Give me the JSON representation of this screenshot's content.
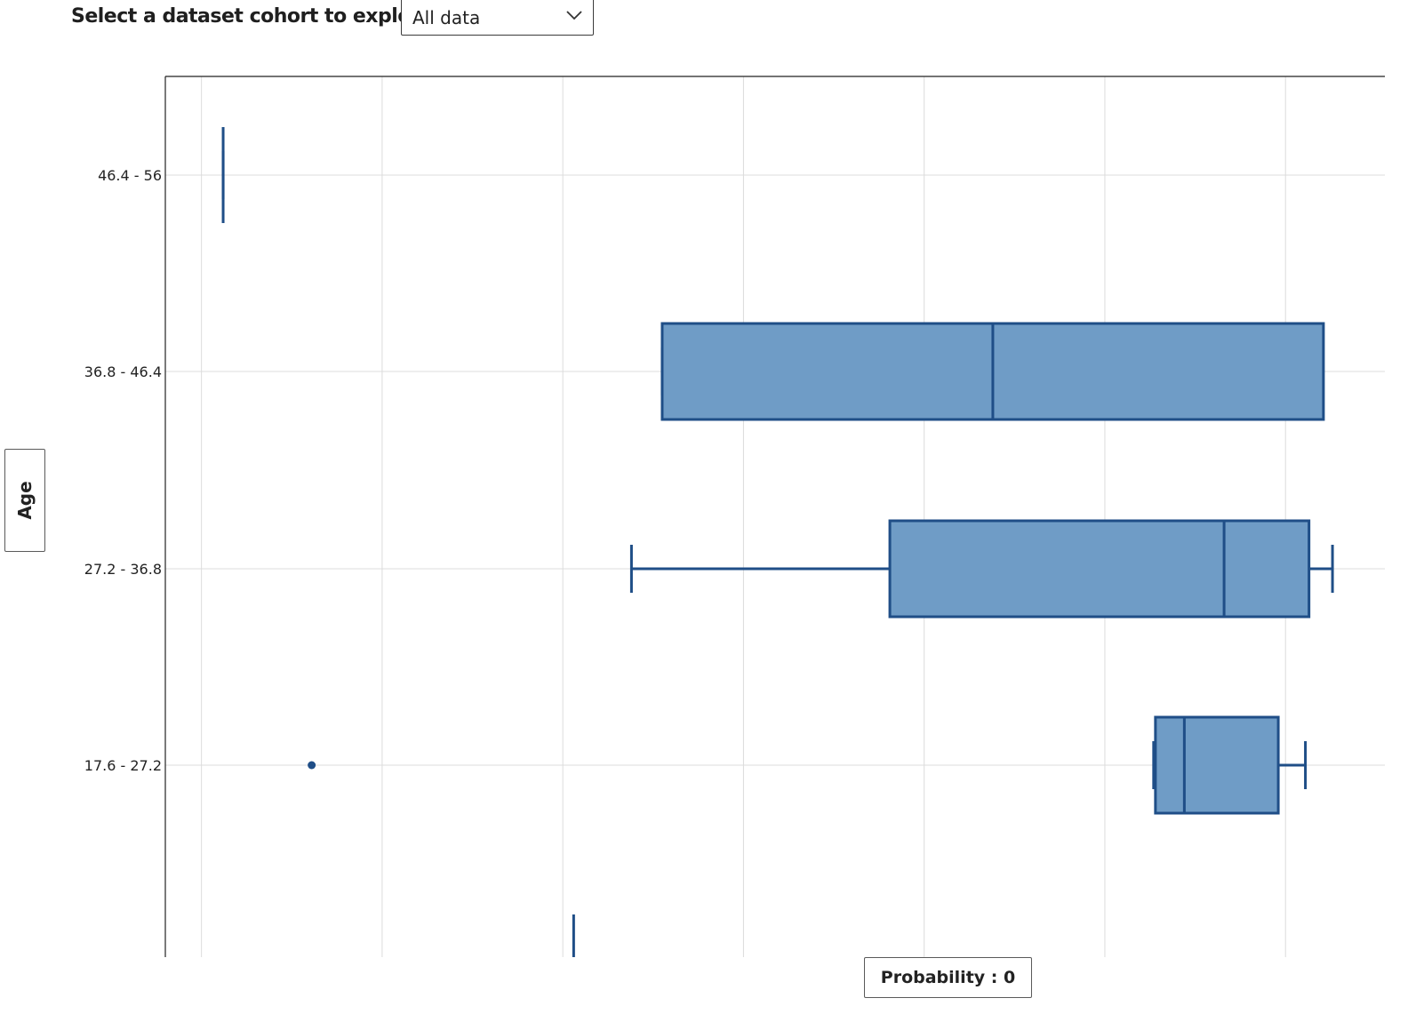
{
  "cohort": {
    "label": "Select a dataset cohort to explore",
    "selected": "All data"
  },
  "y_axis_button": "Age",
  "x_axis_button": "Probability : 0",
  "colors": {
    "box_fill": "#6f9cc6",
    "box_stroke": "#1f4e87",
    "grid": "#dcdcdc",
    "axis": "#222222"
  },
  "chart_data": {
    "type": "box",
    "orientation": "horizontal",
    "xlabel": "Probability : 0",
    "ylabel": "Age",
    "xlim": [
      0.18,
      0.855
    ],
    "grid": true,
    "categories": [
      "46.4 - 56",
      "36.8 - 46.4",
      "27.2 - 36.8",
      "17.6 - 27.2"
    ],
    "boxes": [
      {
        "category": "46.4 - 56",
        "min": 0.212,
        "q1": 0.212,
        "median": 0.212,
        "q3": 0.212,
        "max": 0.212,
        "outliers": []
      },
      {
        "category": "36.8 - 46.4",
        "min": 0.455,
        "q1": 0.455,
        "median": 0.638,
        "q3": 0.821,
        "max": 0.821,
        "outliers": []
      },
      {
        "category": "27.2 - 36.8",
        "min": 0.438,
        "q1": 0.581,
        "median": 0.766,
        "q3": 0.813,
        "max": 0.826,
        "outliers": []
      },
      {
        "category": "17.6 - 27.2",
        "min": 0.727,
        "q1": 0.728,
        "median": 0.744,
        "q3": 0.796,
        "max": 0.811,
        "outliers": [
          0.261
        ]
      }
    ],
    "extra_marks": [
      {
        "category_index": 4,
        "value": 0.406
      }
    ]
  }
}
